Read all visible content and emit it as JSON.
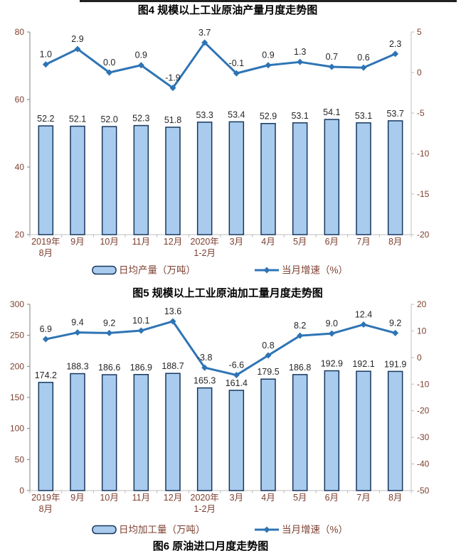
{
  "chart_data": [
    {
      "type": "bar+line",
      "title": "图4 规模以上工业原油产量月度走势图",
      "categories": [
        "2019年\n8月",
        "9月",
        "10月",
        "11月",
        "12月",
        "2020年\n1-2月",
        "3月",
        "4月",
        "5月",
        "6月",
        "7月",
        "8月"
      ],
      "series": [
        {
          "name": "日均产量（万吨）",
          "type": "bar",
          "axis": "left",
          "values": [
            52.2,
            52.1,
            52.0,
            52.3,
            51.8,
            53.3,
            53.4,
            52.9,
            53.1,
            54.1,
            53.1,
            53.7
          ]
        },
        {
          "name": "当月增速（%）",
          "type": "line",
          "axis": "right",
          "values": [
            1.0,
            2.9,
            0.0,
            0.9,
            -1.9,
            3.7,
            -0.1,
            0.9,
            1.3,
            0.7,
            0.6,
            2.3
          ]
        }
      ],
      "left_axis": {
        "min": 20,
        "max": 80,
        "step": 20
      },
      "right_axis": {
        "min": -20,
        "max": 5,
        "step": 5
      },
      "grid": "off",
      "legend_position": "bottom"
    },
    {
      "type": "bar+line",
      "title": "图5 规模以上工业原油加工量月度走势图",
      "categories": [
        "2019年\n8月",
        "9月",
        "10月",
        "11月",
        "12月",
        "2020年\n1-2月",
        "3月",
        "4月",
        "5月",
        "6月",
        "7月",
        "8月"
      ],
      "series": [
        {
          "name": "日均加工量（万吨）",
          "type": "bar",
          "axis": "left",
          "values": [
            174.2,
            188.3,
            186.6,
            186.9,
            188.7,
            165.3,
            161.4,
            179.5,
            186.8,
            192.9,
            192.1,
            191.9
          ]
        },
        {
          "name": "当月增速（%）",
          "type": "line",
          "axis": "right",
          "values": [
            6.9,
            9.4,
            9.2,
            10.1,
            13.6,
            -3.8,
            -6.6,
            0.8,
            8.2,
            9.0,
            12.4,
            9.2
          ]
        }
      ],
      "left_axis": {
        "min": 0,
        "max": 300,
        "step": 50
      },
      "right_axis": {
        "min": -50,
        "max": 20,
        "step": 10
      },
      "grid": "off",
      "legend_position": "bottom"
    }
  ],
  "footer_title": "图6 原油进口月度走势图",
  "colors": {
    "bar_fill": "#A9CCEE",
    "bar_border": "#17375E",
    "line": "#2E74B5",
    "title": "#000000",
    "data_label": "#262626",
    "axis_label": "#7D4031",
    "left_spine": "#7F7F7F",
    "right_spine": "#BFBFBF",
    "bottom_spine": "#BFBFBF"
  }
}
